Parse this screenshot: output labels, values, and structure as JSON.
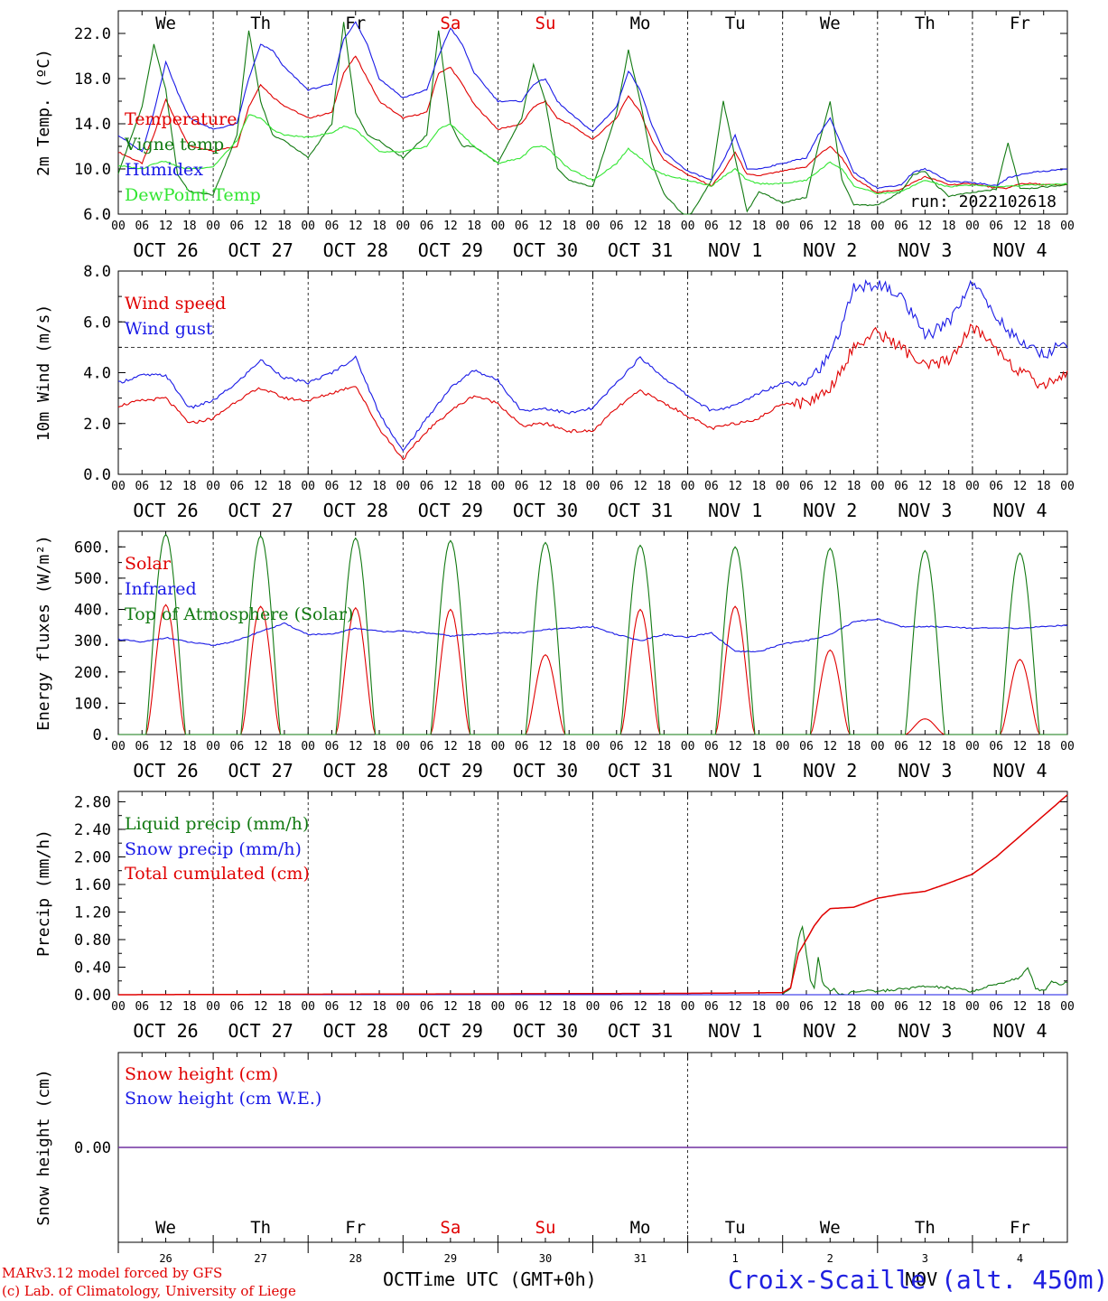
{
  "meta": {
    "run_label": "run: 2022102618",
    "model_credit": "MARv3.12 model forced by GFS",
    "lab_credit": "(c) Lab. of Climatology, University of Liege",
    "xlabel": "Time UTC (GMT+0h)",
    "month_left": "OCT",
    "month_right": "NOV",
    "station": "Croix-Scaille (alt. 450m)",
    "colors": {
      "red": "#e00000",
      "green_dark": "#127a12",
      "blue": "#1a1ae6",
      "green_light": "#32e632",
      "purple": "#7030a0",
      "dashed": "#000000"
    }
  },
  "axis_shared": {
    "hour_ticks": [
      "00",
      "06",
      "12",
      "18"
    ],
    "end_tick": "00",
    "days": [
      "OCT 26",
      "OCT 27",
      "OCT 28",
      "OCT 29",
      "OCT 30",
      "OCT 31",
      "NOV  1",
      "NOV  2",
      "NOV  3",
      "NOV  4"
    ],
    "weekdays": [
      "We",
      "Th",
      "Fr",
      "Sa",
      "Su",
      "Mo",
      "Tu",
      "We",
      "Th",
      "Fr"
    ],
    "weekend_flags": [
      false,
      false,
      false,
      true,
      true,
      false,
      false,
      false,
      false,
      false
    ],
    "day_numbers": [
      "26",
      "27",
      "28",
      "29",
      "30",
      "31",
      "1",
      "2",
      "3",
      "4"
    ]
  },
  "chart_data": [
    {
      "type": "line",
      "id": "temp",
      "ylabel": "2m Temp. (ºC)",
      "ylim": [
        6,
        24
      ],
      "yticks": [
        "6.0",
        "10.0",
        "14.0",
        "18.0",
        "22.0"
      ],
      "ytick_values": [
        6,
        10,
        14,
        18,
        22
      ],
      "grid": "dashed vertical at 00 UTC",
      "x_unit": "hours since 2022-10-26 00 UTC",
      "series": [
        {
          "name": "Temperature",
          "color": "#e00000",
          "x": [
            0,
            6,
            9,
            12,
            15,
            18,
            24,
            30,
            33,
            36,
            39,
            42,
            48,
            54,
            57,
            60,
            63,
            66,
            72,
            78,
            81,
            84,
            87,
            90,
            96,
            102,
            105,
            108,
            111,
            114,
            120,
            126,
            129,
            132,
            135,
            138,
            144,
            150,
            153,
            156,
            159,
            162,
            168,
            174,
            177,
            180,
            183,
            186,
            192,
            198,
            201,
            204,
            207,
            210,
            216,
            222,
            225,
            228,
            231,
            234,
            240
          ],
          "y": [
            11.5,
            10.5,
            13,
            16.2,
            14,
            12,
            11.6,
            12,
            15.5,
            17.5,
            16.4,
            15.6,
            14.5,
            15,
            18.5,
            20,
            18,
            16,
            14.5,
            15,
            18.5,
            19,
            17.5,
            15.7,
            13.5,
            14,
            15.5,
            16,
            14.5,
            14,
            12.6,
            14.5,
            16.5,
            15,
            12.5,
            10.8,
            9.5,
            8.5,
            9.8,
            11.5,
            9.5,
            9.4,
            9.8,
            10.2,
            11.2,
            12,
            11,
            9.2,
            7.9,
            8.2,
            8.8,
            9.3,
            9,
            8.6,
            8.7,
            8.3,
            8.3,
            8.7,
            8.7,
            8.6,
            8.6
          ]
        },
        {
          "name": "Vigne temp",
          "color": "#127a12",
          "x": [
            0,
            6,
            9,
            12,
            15,
            18,
            24,
            30,
            33,
            36,
            39,
            42,
            48,
            54,
            57,
            60,
            63,
            66,
            72,
            78,
            81,
            84,
            87,
            90,
            96,
            102,
            105,
            108,
            111,
            114,
            120,
            126,
            129,
            132,
            135,
            138,
            144,
            150,
            153,
            156,
            159,
            162,
            168,
            174,
            177,
            180,
            183,
            186,
            192,
            198,
            201,
            204,
            207,
            210,
            216,
            222,
            225,
            228,
            231,
            234,
            240
          ],
          "y": [
            9.6,
            15.5,
            21,
            17,
            9.5,
            8,
            7.7,
            13,
            22.3,
            16,
            13,
            12.5,
            11,
            14,
            23,
            15,
            13,
            12.5,
            11,
            13,
            22.3,
            14,
            12,
            12,
            10.5,
            14.5,
            19.3,
            16,
            10,
            9,
            8.4,
            15,
            20.5,
            16,
            10.5,
            7.8,
            5.5,
            9,
            16,
            11,
            6.2,
            8,
            7,
            7.5,
            12,
            16,
            9,
            6.8,
            6.8,
            8,
            9.5,
            9.8,
            8.5,
            7.6,
            7.9,
            8.2,
            12.3,
            8.3,
            8.3,
            8.4,
            8.6
          ]
        },
        {
          "name": "Humidex",
          "color": "#1a1ae6",
          "x": [
            0,
            6,
            9,
            12,
            15,
            18,
            24,
            30,
            33,
            36,
            39,
            42,
            48,
            54,
            57,
            60,
            63,
            66,
            72,
            78,
            81,
            84,
            87,
            90,
            96,
            102,
            105,
            108,
            111,
            114,
            120,
            126,
            129,
            132,
            135,
            138,
            144,
            150,
            153,
            156,
            159,
            162,
            168,
            174,
            177,
            180,
            183,
            186,
            192,
            198,
            201,
            204,
            207,
            210,
            216,
            222,
            225,
            228,
            231,
            234,
            240
          ],
          "y": [
            13,
            11.5,
            15,
            19.5,
            16.8,
            14.5,
            13.5,
            14,
            18,
            21,
            20.5,
            19,
            17,
            17.5,
            21.5,
            23,
            21,
            18,
            16.3,
            17,
            20,
            22.5,
            21,
            18.5,
            16,
            16,
            17.5,
            18,
            16,
            15,
            13.3,
            15.5,
            18.7,
            17,
            13.8,
            11.5,
            9.8,
            9,
            10.7,
            13,
            10,
            10,
            10.5,
            11,
            13,
            14.5,
            12,
            9.7,
            8.3,
            8.6,
            9.7,
            10,
            9.5,
            8.9,
            8.8,
            8.5,
            9.2,
            9.5,
            9.7,
            9.8,
            10
          ]
        },
        {
          "name": "DewPoint Temp",
          "color": "#32e632",
          "x": [
            0,
            6,
            9,
            12,
            15,
            18,
            24,
            30,
            33,
            36,
            39,
            42,
            48,
            54,
            57,
            60,
            63,
            66,
            72,
            78,
            81,
            84,
            87,
            90,
            96,
            102,
            105,
            108,
            111,
            114,
            120,
            126,
            129,
            132,
            135,
            138,
            144,
            150,
            153,
            156,
            159,
            162,
            168,
            174,
            177,
            180,
            183,
            186,
            192,
            198,
            201,
            204,
            207,
            210,
            216,
            222,
            225,
            228,
            231,
            234,
            240
          ],
          "y": [
            10.3,
            10,
            10.5,
            10.7,
            10.2,
            10,
            10.2,
            12.5,
            14.8,
            14.5,
            13.5,
            13,
            12.8,
            13.2,
            13.8,
            13.5,
            12.5,
            11.5,
            11.5,
            12,
            13.5,
            14,
            13,
            12,
            10.5,
            11,
            12,
            12,
            11,
            10,
            9,
            10.5,
            11.8,
            11,
            10,
            9.5,
            9,
            8.5,
            9.3,
            10,
            9,
            8.7,
            8.7,
            9,
            9.8,
            10.6,
            10,
            8.5,
            7.8,
            8,
            8.5,
            9,
            8.7,
            8.4,
            8.6,
            8.4,
            8.5,
            8.5,
            8.6,
            8.6,
            8.7
          ]
        }
      ]
    },
    {
      "type": "line",
      "id": "wind",
      "ylabel": "10m Wind (m/s)",
      "ylim": [
        0,
        8
      ],
      "yticks": [
        "0.0",
        "2.0",
        "4.0",
        "6.0",
        "8.0"
      ],
      "ytick_values": [
        0,
        2,
        4,
        6,
        8
      ],
      "reference_line": 5,
      "x_unit": "hours since 2022-10-26 00 UTC",
      "series": [
        {
          "name": "Wind speed",
          "color": "#e00000",
          "x": [
            0,
            6,
            12,
            18,
            24,
            30,
            36,
            42,
            48,
            54,
            60,
            66,
            72,
            78,
            84,
            90,
            96,
            102,
            108,
            114,
            120,
            126,
            132,
            138,
            144,
            150,
            156,
            162,
            168,
            174,
            180,
            186,
            192,
            198,
            204,
            210,
            216,
            222,
            228,
            234,
            240
          ],
          "y": [
            2.7,
            2.9,
            3.0,
            2.0,
            2.2,
            2.9,
            3.4,
            3.0,
            2.9,
            3.2,
            3.5,
            1.8,
            0.6,
            1.7,
            2.5,
            3.1,
            2.8,
            1.9,
            2.0,
            1.7,
            1.7,
            2.6,
            3.3,
            2.8,
            2.3,
            1.8,
            2.0,
            2.2,
            2.8,
            2.8,
            3.4,
            5.0,
            5.6,
            5.0,
            4.2,
            4.5,
            5.8,
            5.0,
            4.0,
            3.5,
            4.0
          ]
        },
        {
          "name": "Wind gust",
          "color": "#1a1ae6",
          "x": [
            0,
            6,
            12,
            18,
            24,
            30,
            36,
            42,
            48,
            54,
            60,
            66,
            72,
            78,
            84,
            90,
            96,
            102,
            108,
            114,
            120,
            126,
            132,
            138,
            144,
            150,
            156,
            162,
            168,
            174,
            180,
            186,
            192,
            198,
            204,
            210,
            216,
            222,
            228,
            234,
            240
          ],
          "y": [
            3.6,
            3.9,
            3.9,
            2.6,
            2.9,
            3.6,
            4.5,
            3.8,
            3.6,
            4.0,
            4.6,
            2.4,
            0.9,
            2.2,
            3.4,
            4.1,
            3.7,
            2.5,
            2.6,
            2.4,
            2.6,
            3.6,
            4.6,
            3.8,
            3.1,
            2.5,
            2.7,
            3.2,
            3.6,
            3.7,
            4.6,
            7.3,
            7.5,
            7.0,
            5.4,
            6.0,
            7.6,
            6.2,
            5.2,
            4.7,
            5.2
          ]
        }
      ]
    },
    {
      "type": "line",
      "id": "energy",
      "ylabel": "Energy fluxes (W/m²)",
      "ylim": [
        0,
        650
      ],
      "yticks": [
        "0.",
        "100.",
        "200.",
        "300.",
        "400.",
        "500.",
        "600."
      ],
      "ytick_values": [
        0,
        100,
        200,
        300,
        400,
        500,
        600
      ],
      "x_unit": "hours since 2022-10-26 00 UTC",
      "daylight_hours": [
        7,
        17
      ],
      "series": [
        {
          "name": "Solar",
          "color": "#e00000",
          "daily_peaks": [
            415,
            410,
            405,
            400,
            255,
            400,
            410,
            270,
            50,
            240
          ]
        },
        {
          "name": "Infrared",
          "color": "#1a1ae6",
          "x": [
            0,
            6,
            12,
            18,
            24,
            30,
            36,
            42,
            48,
            54,
            60,
            66,
            72,
            78,
            84,
            90,
            96,
            102,
            108,
            114,
            120,
            126,
            132,
            138,
            144,
            150,
            156,
            162,
            168,
            174,
            180,
            186,
            192,
            198,
            204,
            210,
            216,
            222,
            228,
            234,
            240
          ],
          "y": [
            305,
            295,
            310,
            295,
            285,
            300,
            330,
            355,
            320,
            320,
            340,
            330,
            330,
            325,
            315,
            320,
            325,
            325,
            335,
            340,
            345,
            320,
            300,
            320,
            310,
            325,
            265,
            265,
            290,
            300,
            320,
            360,
            370,
            345,
            345,
            345,
            340,
            340,
            340,
            345,
            350
          ]
        },
        {
          "name": "Top of Atmosphere (Solar)",
          "color": "#127a12",
          "daily_peaks": [
            640,
            635,
            628,
            620,
            614,
            605,
            600,
            595,
            588,
            580
          ]
        }
      ]
    },
    {
      "type": "line",
      "id": "precip",
      "ylabel": "Precip (mm/h)",
      "ylim": [
        0,
        2.95
      ],
      "yticks": [
        "0.00",
        "0.40",
        "0.80",
        "1.20",
        "1.60",
        "2.00",
        "2.40",
        "2.80"
      ],
      "ytick_values": [
        0,
        0.4,
        0.8,
        1.2,
        1.6,
        2.0,
        2.4,
        2.8
      ],
      "x_unit": "hours since 2022-10-26 00 UTC",
      "series": [
        {
          "name": "Liquid precip (mm/h)",
          "color": "#127a12",
          "x": [
            0,
            168,
            170,
            172,
            173,
            175,
            176,
            177,
            178,
            179,
            180,
            181,
            182,
            184,
            186,
            192,
            198,
            204,
            210,
            216,
            222,
            228,
            230,
            232,
            234,
            236,
            238,
            240
          ],
          "y": [
            0,
            0,
            0.1,
            0.8,
            1.0,
            0.2,
            0.1,
            0.55,
            0.2,
            0.1,
            0.05,
            0.1,
            0.02,
            0,
            0.05,
            0.05,
            0.08,
            0.12,
            0.1,
            0.05,
            0.15,
            0.25,
            0.38,
            0.1,
            0.05,
            0.2,
            0.15,
            0.18
          ]
        },
        {
          "name": "Snow precip (mm/h)",
          "color": "#1a1ae6",
          "x": [
            0,
            240
          ],
          "y": [
            0,
            0
          ]
        },
        {
          "name": "Total cumulated (cm)",
          "color": "#e00000",
          "x": [
            0,
            144,
            168,
            170,
            172,
            174,
            176,
            178,
            180,
            186,
            192,
            198,
            204,
            210,
            216,
            222,
            228,
            234,
            240
          ],
          "y": [
            0,
            0.02,
            0.03,
            0.1,
            0.6,
            0.8,
            1.0,
            1.15,
            1.25,
            1.27,
            1.4,
            1.46,
            1.5,
            1.62,
            1.75,
            2.0,
            2.3,
            2.6,
            2.9
          ]
        }
      ]
    },
    {
      "type": "line",
      "id": "snow",
      "ylabel": "Snow height (cm)",
      "ylim": [
        -1,
        1
      ],
      "yticks": [
        "0.00"
      ],
      "ytick_values": [
        0
      ],
      "x_unit": "hours since 2022-10-26 00 UTC",
      "series": [
        {
          "name": "Snow height (cm)",
          "color": "#e00000",
          "x": [
            0,
            240
          ],
          "y": [
            0,
            0
          ]
        },
        {
          "name": "Snow height (cm W.E.)",
          "color": "#1a1ae6",
          "x": [
            0,
            240
          ],
          "y": [
            0,
            0
          ]
        }
      ]
    }
  ]
}
